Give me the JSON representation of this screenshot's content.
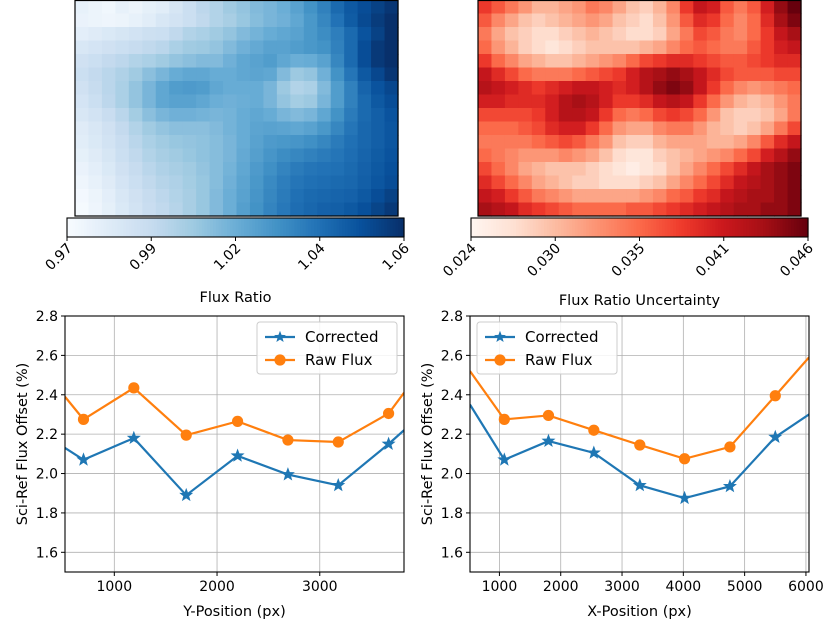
{
  "chart_data": [
    {
      "type": "heatmap",
      "colormap": "Blues",
      "colorbar_label": "Flux Ratio",
      "colorbar_ticks": [
        "0.97",
        "0.99",
        "1.02",
        "1.04",
        "1.06"
      ],
      "vmin": 0.97,
      "vmax": 1.06,
      "grid_size": [
        24,
        16
      ],
      "rows": [
        [
          0.977,
          0.975,
          0.973,
          0.977,
          0.975,
          0.978,
          0.98,
          0.985,
          0.99,
          0.995,
          0.998,
          1.003,
          1.006,
          1.01,
          1.012,
          1.015,
          1.02,
          1.026,
          1.032,
          1.04,
          1.046,
          1.05,
          1.054,
          1.058
        ],
        [
          0.976,
          0.975,
          0.974,
          0.975,
          0.977,
          0.98,
          0.984,
          0.987,
          0.99,
          0.994,
          0.998,
          1.001,
          1.005,
          1.009,
          1.012,
          1.014,
          1.018,
          1.024,
          1.03,
          1.037,
          1.045,
          1.051,
          1.056,
          1.06
        ],
        [
          0.979,
          0.981,
          0.983,
          0.985,
          0.987,
          0.989,
          0.99,
          0.994,
          0.998,
          1.0,
          1.003,
          1.006,
          1.01,
          1.013,
          1.016,
          1.018,
          1.02,
          1.024,
          1.028,
          1.033,
          1.04,
          1.048,
          1.054,
          1.061
        ],
        [
          0.984,
          0.986,
          0.988,
          0.99,
          0.992,
          0.994,
          0.996,
          1.0,
          1.003,
          1.004,
          1.006,
          1.01,
          1.014,
          1.017,
          1.02,
          1.02,
          1.022,
          1.024,
          1.026,
          1.032,
          1.04,
          1.05,
          1.057,
          1.064
        ],
        [
          0.988,
          0.99,
          0.993,
          0.995,
          0.998,
          1.0,
          1.003,
          1.006,
          1.008,
          1.01,
          1.01,
          1.014,
          1.018,
          1.02,
          1.022,
          1.018,
          1.015,
          1.016,
          1.02,
          1.03,
          1.04,
          1.05,
          1.057,
          1.064
        ],
        [
          0.99,
          0.993,
          0.996,
          0.999,
          1.003,
          1.008,
          1.012,
          1.016,
          1.018,
          1.018,
          1.016,
          1.016,
          1.018,
          1.019,
          1.018,
          1.01,
          1.004,
          1.006,
          1.014,
          1.026,
          1.036,
          1.046,
          1.052,
          1.058
        ],
        [
          0.988,
          0.992,
          0.996,
          1.0,
          1.006,
          1.012,
          1.018,
          1.022,
          1.023,
          1.022,
          1.018,
          1.016,
          1.016,
          1.016,
          1.012,
          1.004,
          0.998,
          1.0,
          1.01,
          1.022,
          1.032,
          1.042,
          1.048,
          1.052
        ],
        [
          0.986,
          0.99,
          0.995,
          1.0,
          1.006,
          1.012,
          1.018,
          1.02,
          1.02,
          1.018,
          1.015,
          1.014,
          1.015,
          1.016,
          1.012,
          1.006,
          1.002,
          1.004,
          1.012,
          1.022,
          1.032,
          1.04,
          1.046,
          1.05
        ],
        [
          0.984,
          0.987,
          0.991,
          0.996,
          1.002,
          1.008,
          1.012,
          1.014,
          1.014,
          1.013,
          1.012,
          1.013,
          1.016,
          1.018,
          1.016,
          1.012,
          1.01,
          1.012,
          1.018,
          1.026,
          1.034,
          1.04,
          1.044,
          1.048
        ],
        [
          0.981,
          0.984,
          0.988,
          0.993,
          0.998,
          1.003,
          1.006,
          1.008,
          1.008,
          1.008,
          1.01,
          1.013,
          1.016,
          1.019,
          1.02,
          1.019,
          1.018,
          1.02,
          1.024,
          1.03,
          1.036,
          1.041,
          1.044,
          1.047
        ],
        [
          0.98,
          0.983,
          0.987,
          0.991,
          0.996,
          1.0,
          1.003,
          1.005,
          1.006,
          1.007,
          1.009,
          1.012,
          1.016,
          1.02,
          1.023,
          1.024,
          1.025,
          1.027,
          1.03,
          1.034,
          1.038,
          1.041,
          1.044,
          1.047
        ],
        [
          0.978,
          0.981,
          0.985,
          0.99,
          0.994,
          0.998,
          1.001,
          1.003,
          1.005,
          1.007,
          1.009,
          1.012,
          1.017,
          1.021,
          1.025,
          1.028,
          1.03,
          1.032,
          1.034,
          1.036,
          1.039,
          1.042,
          1.045,
          1.048
        ],
        [
          0.976,
          0.979,
          0.983,
          0.988,
          0.992,
          0.996,
          0.999,
          1.001,
          1.003,
          1.006,
          1.009,
          1.013,
          1.018,
          1.023,
          1.027,
          1.031,
          1.034,
          1.036,
          1.037,
          1.038,
          1.04,
          1.043,
          1.046,
          1.049
        ],
        [
          0.974,
          0.977,
          0.981,
          0.986,
          0.99,
          0.994,
          0.997,
          0.999,
          1.002,
          1.005,
          1.009,
          1.014,
          1.019,
          1.024,
          1.029,
          1.033,
          1.036,
          1.038,
          1.039,
          1.04,
          1.041,
          1.044,
          1.047,
          1.05
        ],
        [
          0.972,
          0.975,
          0.979,
          0.984,
          0.988,
          0.992,
          0.995,
          0.998,
          1.001,
          1.005,
          1.01,
          1.015,
          1.02,
          1.025,
          1.03,
          1.034,
          1.038,
          1.04,
          1.041,
          1.042,
          1.043,
          1.046,
          1.05,
          1.054
        ],
        [
          0.971,
          0.974,
          0.978,
          0.983,
          0.987,
          0.991,
          0.994,
          0.997,
          1.001,
          1.005,
          1.01,
          1.015,
          1.021,
          1.026,
          1.031,
          1.035,
          1.039,
          1.041,
          1.043,
          1.044,
          1.046,
          1.049,
          1.053,
          1.057
        ]
      ]
    },
    {
      "type": "heatmap",
      "colormap": "Reds",
      "colorbar_label": "Flux Ratio Uncertainty",
      "colorbar_ticks": [
        "0.024",
        "0.030",
        "0.035",
        "0.041",
        "0.046"
      ],
      "vmin": 0.024,
      "vmax": 0.046,
      "grid_size": [
        24,
        16
      ],
      "rows": [
        [
          0.038,
          0.036,
          0.034,
          0.032,
          0.03,
          0.03,
          0.031,
          0.032,
          0.034,
          0.033,
          0.031,
          0.029,
          0.028,
          0.03,
          0.033,
          0.038,
          0.041,
          0.04,
          0.036,
          0.034,
          0.036,
          0.04,
          0.044,
          0.046
        ],
        [
          0.036,
          0.033,
          0.031,
          0.029,
          0.028,
          0.029,
          0.03,
          0.031,
          0.032,
          0.031,
          0.029,
          0.028,
          0.027,
          0.029,
          0.032,
          0.036,
          0.039,
          0.038,
          0.035,
          0.033,
          0.035,
          0.039,
          0.043,
          0.045
        ],
        [
          0.034,
          0.031,
          0.029,
          0.028,
          0.027,
          0.027,
          0.028,
          0.029,
          0.03,
          0.029,
          0.028,
          0.027,
          0.027,
          0.028,
          0.031,
          0.034,
          0.037,
          0.036,
          0.034,
          0.033,
          0.035,
          0.038,
          0.041,
          0.043
        ],
        [
          0.035,
          0.032,
          0.03,
          0.028,
          0.027,
          0.026,
          0.027,
          0.028,
          0.029,
          0.029,
          0.029,
          0.029,
          0.03,
          0.031,
          0.033,
          0.035,
          0.036,
          0.035,
          0.034,
          0.034,
          0.036,
          0.038,
          0.04,
          0.041
        ],
        [
          0.038,
          0.035,
          0.033,
          0.031,
          0.03,
          0.029,
          0.029,
          0.03,
          0.031,
          0.032,
          0.033,
          0.035,
          0.037,
          0.038,
          0.039,
          0.039,
          0.038,
          0.037,
          0.036,
          0.036,
          0.037,
          0.038,
          0.039,
          0.039
        ],
        [
          0.041,
          0.039,
          0.037,
          0.035,
          0.034,
          0.034,
          0.034,
          0.035,
          0.036,
          0.037,
          0.038,
          0.04,
          0.042,
          0.043,
          0.044,
          0.043,
          0.041,
          0.039,
          0.037,
          0.036,
          0.036,
          0.036,
          0.037,
          0.037
        ],
        [
          0.042,
          0.041,
          0.04,
          0.039,
          0.038,
          0.039,
          0.04,
          0.041,
          0.041,
          0.04,
          0.039,
          0.04,
          0.042,
          0.044,
          0.045,
          0.044,
          0.041,
          0.038,
          0.035,
          0.033,
          0.032,
          0.033,
          0.034,
          0.035
        ],
        [
          0.04,
          0.04,
          0.039,
          0.039,
          0.039,
          0.04,
          0.042,
          0.043,
          0.042,
          0.04,
          0.038,
          0.038,
          0.039,
          0.041,
          0.042,
          0.041,
          0.038,
          0.035,
          0.032,
          0.03,
          0.029,
          0.03,
          0.032,
          0.034
        ],
        [
          0.037,
          0.037,
          0.037,
          0.037,
          0.038,
          0.04,
          0.042,
          0.042,
          0.041,
          0.038,
          0.035,
          0.034,
          0.035,
          0.037,
          0.038,
          0.037,
          0.035,
          0.032,
          0.029,
          0.028,
          0.028,
          0.029,
          0.031,
          0.034
        ],
        [
          0.035,
          0.035,
          0.035,
          0.036,
          0.037,
          0.039,
          0.04,
          0.04,
          0.038,
          0.035,
          0.032,
          0.031,
          0.031,
          0.033,
          0.034,
          0.034,
          0.032,
          0.03,
          0.029,
          0.028,
          0.029,
          0.031,
          0.034,
          0.037
        ],
        [
          0.034,
          0.034,
          0.034,
          0.034,
          0.035,
          0.036,
          0.037,
          0.036,
          0.034,
          0.032,
          0.029,
          0.028,
          0.028,
          0.03,
          0.031,
          0.031,
          0.031,
          0.03,
          0.03,
          0.031,
          0.033,
          0.036,
          0.039,
          0.041
        ],
        [
          0.035,
          0.034,
          0.033,
          0.032,
          0.032,
          0.032,
          0.033,
          0.032,
          0.031,
          0.029,
          0.027,
          0.026,
          0.026,
          0.028,
          0.029,
          0.03,
          0.031,
          0.032,
          0.033,
          0.035,
          0.037,
          0.04,
          0.042,
          0.044
        ],
        [
          0.037,
          0.035,
          0.033,
          0.031,
          0.03,
          0.029,
          0.029,
          0.029,
          0.028,
          0.027,
          0.026,
          0.025,
          0.026,
          0.027,
          0.029,
          0.031,
          0.033,
          0.035,
          0.037,
          0.039,
          0.041,
          0.043,
          0.044,
          0.045
        ],
        [
          0.039,
          0.037,
          0.035,
          0.033,
          0.031,
          0.03,
          0.029,
          0.028,
          0.028,
          0.027,
          0.027,
          0.027,
          0.028,
          0.029,
          0.031,
          0.033,
          0.035,
          0.037,
          0.039,
          0.041,
          0.042,
          0.043,
          0.044,
          0.045
        ],
        [
          0.041,
          0.04,
          0.038,
          0.036,
          0.034,
          0.033,
          0.032,
          0.031,
          0.031,
          0.031,
          0.031,
          0.031,
          0.032,
          0.033,
          0.035,
          0.036,
          0.038,
          0.039,
          0.041,
          0.042,
          0.043,
          0.043,
          0.044,
          0.045
        ],
        [
          0.043,
          0.042,
          0.041,
          0.039,
          0.038,
          0.037,
          0.036,
          0.035,
          0.035,
          0.035,
          0.035,
          0.036,
          0.036,
          0.037,
          0.038,
          0.039,
          0.04,
          0.041,
          0.042,
          0.043,
          0.043,
          0.044,
          0.044,
          0.045
        ]
      ]
    },
    {
      "type": "line",
      "xlabel": "Y-Position (px)",
      "ylabel": "Sci-Ref Flux Offset (%)",
      "xlim": [
        520,
        3820
      ],
      "ylim": [
        1.5,
        2.8
      ],
      "xticks": [
        1000,
        2000,
        3000
      ],
      "xtick_labels": [
        "1000",
        "2000",
        "3000"
      ],
      "yticks": [
        1.6,
        1.8,
        2.0,
        2.2,
        2.4,
        2.6,
        2.8
      ],
      "ytick_labels": [
        "1.6",
        "1.8",
        "2.0",
        "2.2",
        "2.4",
        "2.6",
        "2.8"
      ],
      "grid": true,
      "legend_position": "top-right",
      "series": [
        {
          "name": "Corrected",
          "color": "#1f77b4",
          "marker": "star",
          "x": [
            700,
            1190,
            1700,
            2200,
            2690,
            3180,
            3670
          ],
          "y": [
            2.07,
            2.18,
            1.89,
            2.09,
            1.995,
            1.94,
            2.15
          ],
          "extend_left": 2.13,
          "extend_right": 2.22
        },
        {
          "name": "Raw Flux",
          "color": "#ff7f0e",
          "marker": "circle",
          "x": [
            700,
            1190,
            1700,
            2200,
            2690,
            3180,
            3670
          ],
          "y": [
            2.275,
            2.435,
            2.195,
            2.265,
            2.17,
            2.16,
            2.305
          ],
          "extend_left": 2.39,
          "extend_right": 2.41
        }
      ]
    },
    {
      "type": "line",
      "xlabel": "X-Position (px)",
      "ylabel": "Sci-Ref Flux Offset (%)",
      "xlim": [
        520,
        6050
      ],
      "ylim": [
        1.5,
        2.8
      ],
      "xticks": [
        1000,
        2000,
        3000,
        4000,
        5000,
        6000
      ],
      "xtick_labels": [
        "1000",
        "2000",
        "3000",
        "4000",
        "5000",
        "6000"
      ],
      "yticks": [
        1.6,
        1.8,
        2.0,
        2.2,
        2.4,
        2.6,
        2.8
      ],
      "ytick_labels": [
        "1.6",
        "1.8",
        "2.0",
        "2.2",
        "2.4",
        "2.6",
        "2.8"
      ],
      "grid": true,
      "legend_position": "top-left",
      "series": [
        {
          "name": "Corrected",
          "color": "#1f77b4",
          "marker": "star",
          "x": [
            1080,
            1800,
            2540,
            3290,
            4020,
            4760,
            5500
          ],
          "y": [
            2.07,
            2.165,
            2.105,
            1.94,
            1.875,
            1.935,
            2.185
          ],
          "extend_left": 2.35,
          "extend_right": 2.3
        },
        {
          "name": "Raw Flux",
          "color": "#ff7f0e",
          "marker": "circle",
          "x": [
            1080,
            1800,
            2540,
            3290,
            4020,
            4760,
            5500
          ],
          "y": [
            2.275,
            2.295,
            2.22,
            2.145,
            2.075,
            2.135,
            2.395
          ],
          "extend_left": 2.52,
          "extend_right": 2.59
        }
      ]
    }
  ]
}
